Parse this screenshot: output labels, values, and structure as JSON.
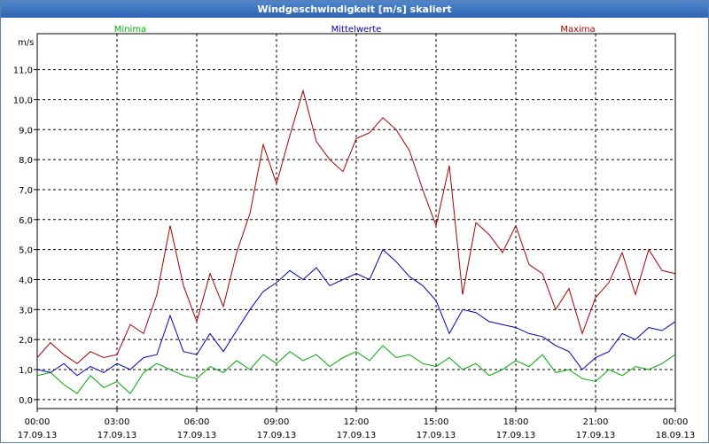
{
  "window": {
    "title": "Windgeschwindigkeit [m/s] skaliert"
  },
  "chart_data": {
    "type": "line",
    "title": "Windgeschwindigkeit [m/s] skaliert",
    "ylabel": "m/s",
    "ylim": [
      -0.3,
      12.2
    ],
    "yticks": [
      "0,0",
      "1,0",
      "2,0",
      "3,0",
      "4,0",
      "5,0",
      "6,0",
      "7,0",
      "8,0",
      "9,0",
      "10,0",
      "11,0"
    ],
    "xlim": [
      0,
      24
    ],
    "xticks": [
      {
        "time": "00:00",
        "date": "17.09.13"
      },
      {
        "time": "03:00",
        "date": "17.09.13"
      },
      {
        "time": "06:00",
        "date": "17.09.13"
      },
      {
        "time": "09:00",
        "date": "17.09.13"
      },
      {
        "time": "12:00",
        "date": "17.09.13"
      },
      {
        "time": "15:00",
        "date": "17.09.13"
      },
      {
        "time": "18:00",
        "date": "17.09.13"
      },
      {
        "time": "21:00",
        "date": "17.09.13"
      },
      {
        "time": "00:00",
        "date": "18.09.13"
      }
    ],
    "grid": true,
    "legend_position": "top",
    "series": [
      {
        "name": "Minima",
        "color": "#00aa00",
        "x": [
          0,
          0.5,
          1,
          1.5,
          2,
          2.5,
          3,
          3.5,
          4,
          4.5,
          5,
          5.5,
          6,
          6.5,
          7,
          7.5,
          8,
          8.5,
          9,
          9.5,
          10,
          10.5,
          11,
          11.5,
          12,
          12.5,
          13,
          13.5,
          14,
          14.5,
          15,
          15.5,
          16,
          16.5,
          17,
          17.5,
          18,
          18.5,
          19,
          19.5,
          20,
          20.5,
          21,
          21.5,
          22,
          22.5,
          23,
          23.5,
          24
        ],
        "values": [
          0.8,
          0.9,
          0.5,
          0.2,
          0.8,
          0.4,
          0.6,
          0.2,
          0.9,
          1.2,
          1.0,
          0.8,
          0.7,
          1.1,
          0.9,
          1.3,
          1.0,
          1.5,
          1.2,
          1.6,
          1.3,
          1.5,
          1.1,
          1.4,
          1.6,
          1.3,
          1.8,
          1.4,
          1.5,
          1.2,
          1.1,
          1.4,
          1.0,
          1.2,
          0.8,
          1.0,
          1.3,
          1.1,
          1.5,
          0.9,
          1.0,
          0.7,
          0.6,
          1.0,
          0.8,
          1.1,
          1.0,
          1.2,
          1.5
        ]
      },
      {
        "name": "Mittelwerte",
        "color": "#0000bb",
        "x": [
          0,
          0.5,
          1,
          1.5,
          2,
          2.5,
          3,
          3.5,
          4,
          4.5,
          5,
          5.5,
          6,
          6.5,
          7,
          7.5,
          8,
          8.5,
          9,
          9.5,
          10,
          10.5,
          11,
          11.5,
          12,
          12.5,
          13,
          13.5,
          14,
          14.5,
          15,
          15.5,
          16,
          16.5,
          17,
          17.5,
          18,
          18.5,
          19,
          19.5,
          20,
          20.5,
          21,
          21.5,
          22,
          22.5,
          23,
          23.5,
          24
        ],
        "values": [
          1.0,
          0.9,
          1.2,
          0.8,
          1.1,
          0.9,
          1.2,
          1.0,
          1.4,
          1.5,
          2.8,
          1.6,
          1.5,
          2.2,
          1.6,
          2.3,
          3.0,
          3.6,
          3.9,
          4.3,
          4.0,
          4.4,
          3.8,
          4.0,
          4.2,
          4.0,
          5.0,
          4.6,
          4.1,
          3.8,
          3.3,
          2.2,
          3.0,
          2.9,
          2.6,
          2.5,
          2.4,
          2.2,
          2.1,
          1.8,
          1.6,
          1.0,
          1.4,
          1.6,
          2.2,
          2.0,
          2.4,
          2.3,
          2.6
        ]
      },
      {
        "name": "Maxima",
        "color": "#aa0000",
        "x": [
          0,
          0.5,
          1,
          1.5,
          2,
          2.5,
          3,
          3.5,
          4,
          4.5,
          5,
          5.5,
          6,
          6.5,
          7,
          7.5,
          8,
          8.5,
          9,
          9.5,
          10,
          10.5,
          11,
          11.5,
          12,
          12.5,
          13,
          13.5,
          14,
          14.5,
          15,
          15.5,
          16,
          16.5,
          17,
          17.5,
          18,
          18.5,
          19,
          19.5,
          20,
          20.5,
          21,
          21.5,
          22,
          22.5,
          23,
          23.5,
          24
        ],
        "values": [
          1.4,
          1.9,
          1.5,
          1.2,
          1.6,
          1.4,
          1.5,
          2.5,
          2.2,
          3.5,
          5.8,
          3.8,
          2.6,
          4.2,
          3.1,
          4.9,
          6.2,
          8.5,
          7.2,
          8.8,
          10.3,
          8.6,
          8.0,
          7.6,
          8.7,
          8.9,
          9.4,
          9.0,
          8.3,
          7.0,
          5.8,
          7.8,
          3.5,
          5.9,
          5.5,
          4.9,
          5.8,
          4.5,
          4.2,
          3.0,
          3.7,
          2.2,
          3.4,
          3.9,
          4.9,
          3.5,
          5.0,
          4.3,
          4.2
        ]
      }
    ]
  }
}
